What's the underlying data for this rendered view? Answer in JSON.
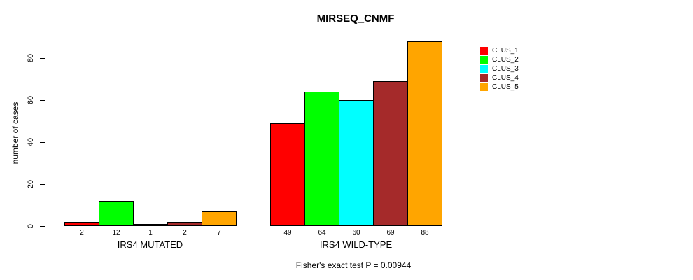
{
  "title": "MIRSEQ_CNMF",
  "caption": "Fisher's exact test P = 0.00944",
  "y_axis": {
    "label": "number of cases",
    "ticks": [
      0,
      20,
      40,
      60,
      80
    ]
  },
  "legend": {
    "position": "right",
    "items": [
      {
        "label": "CLUS_1",
        "color": "#FF0000"
      },
      {
        "label": "CLUS_2",
        "color": "#00FF00"
      },
      {
        "label": "CLUS_3",
        "color": "#00FFFF"
      },
      {
        "label": "CLUS_4",
        "color": "#A52A2A"
      },
      {
        "label": "CLUS_5",
        "color": "#FFA500"
      }
    ]
  },
  "chart_data": {
    "type": "bar",
    "title": "MIRSEQ_CNMF",
    "ylabel": "number of cases",
    "xlabel": "",
    "ylim": [
      0,
      90
    ],
    "yticks": [
      0,
      20,
      40,
      60,
      80
    ],
    "grid": false,
    "legend_position": "right",
    "bar_value_labels": true,
    "categories": [
      "IRS4 MUTATED",
      "IRS4 WILD-TYPE"
    ],
    "series": [
      {
        "name": "CLUS_1",
        "color": "#FF0000",
        "values": [
          2,
          49
        ]
      },
      {
        "name": "CLUS_2",
        "color": "#00FF00",
        "values": [
          12,
          64
        ]
      },
      {
        "name": "CLUS_3",
        "color": "#00FFFF",
        "values": [
          1,
          60
        ]
      },
      {
        "name": "CLUS_4",
        "color": "#A52A2A",
        "values": [
          2,
          69
        ]
      },
      {
        "name": "CLUS_5",
        "color": "#FFA500",
        "values": [
          7,
          88
        ]
      }
    ],
    "annotation": "Fisher's exact test P = 0.00944"
  }
}
